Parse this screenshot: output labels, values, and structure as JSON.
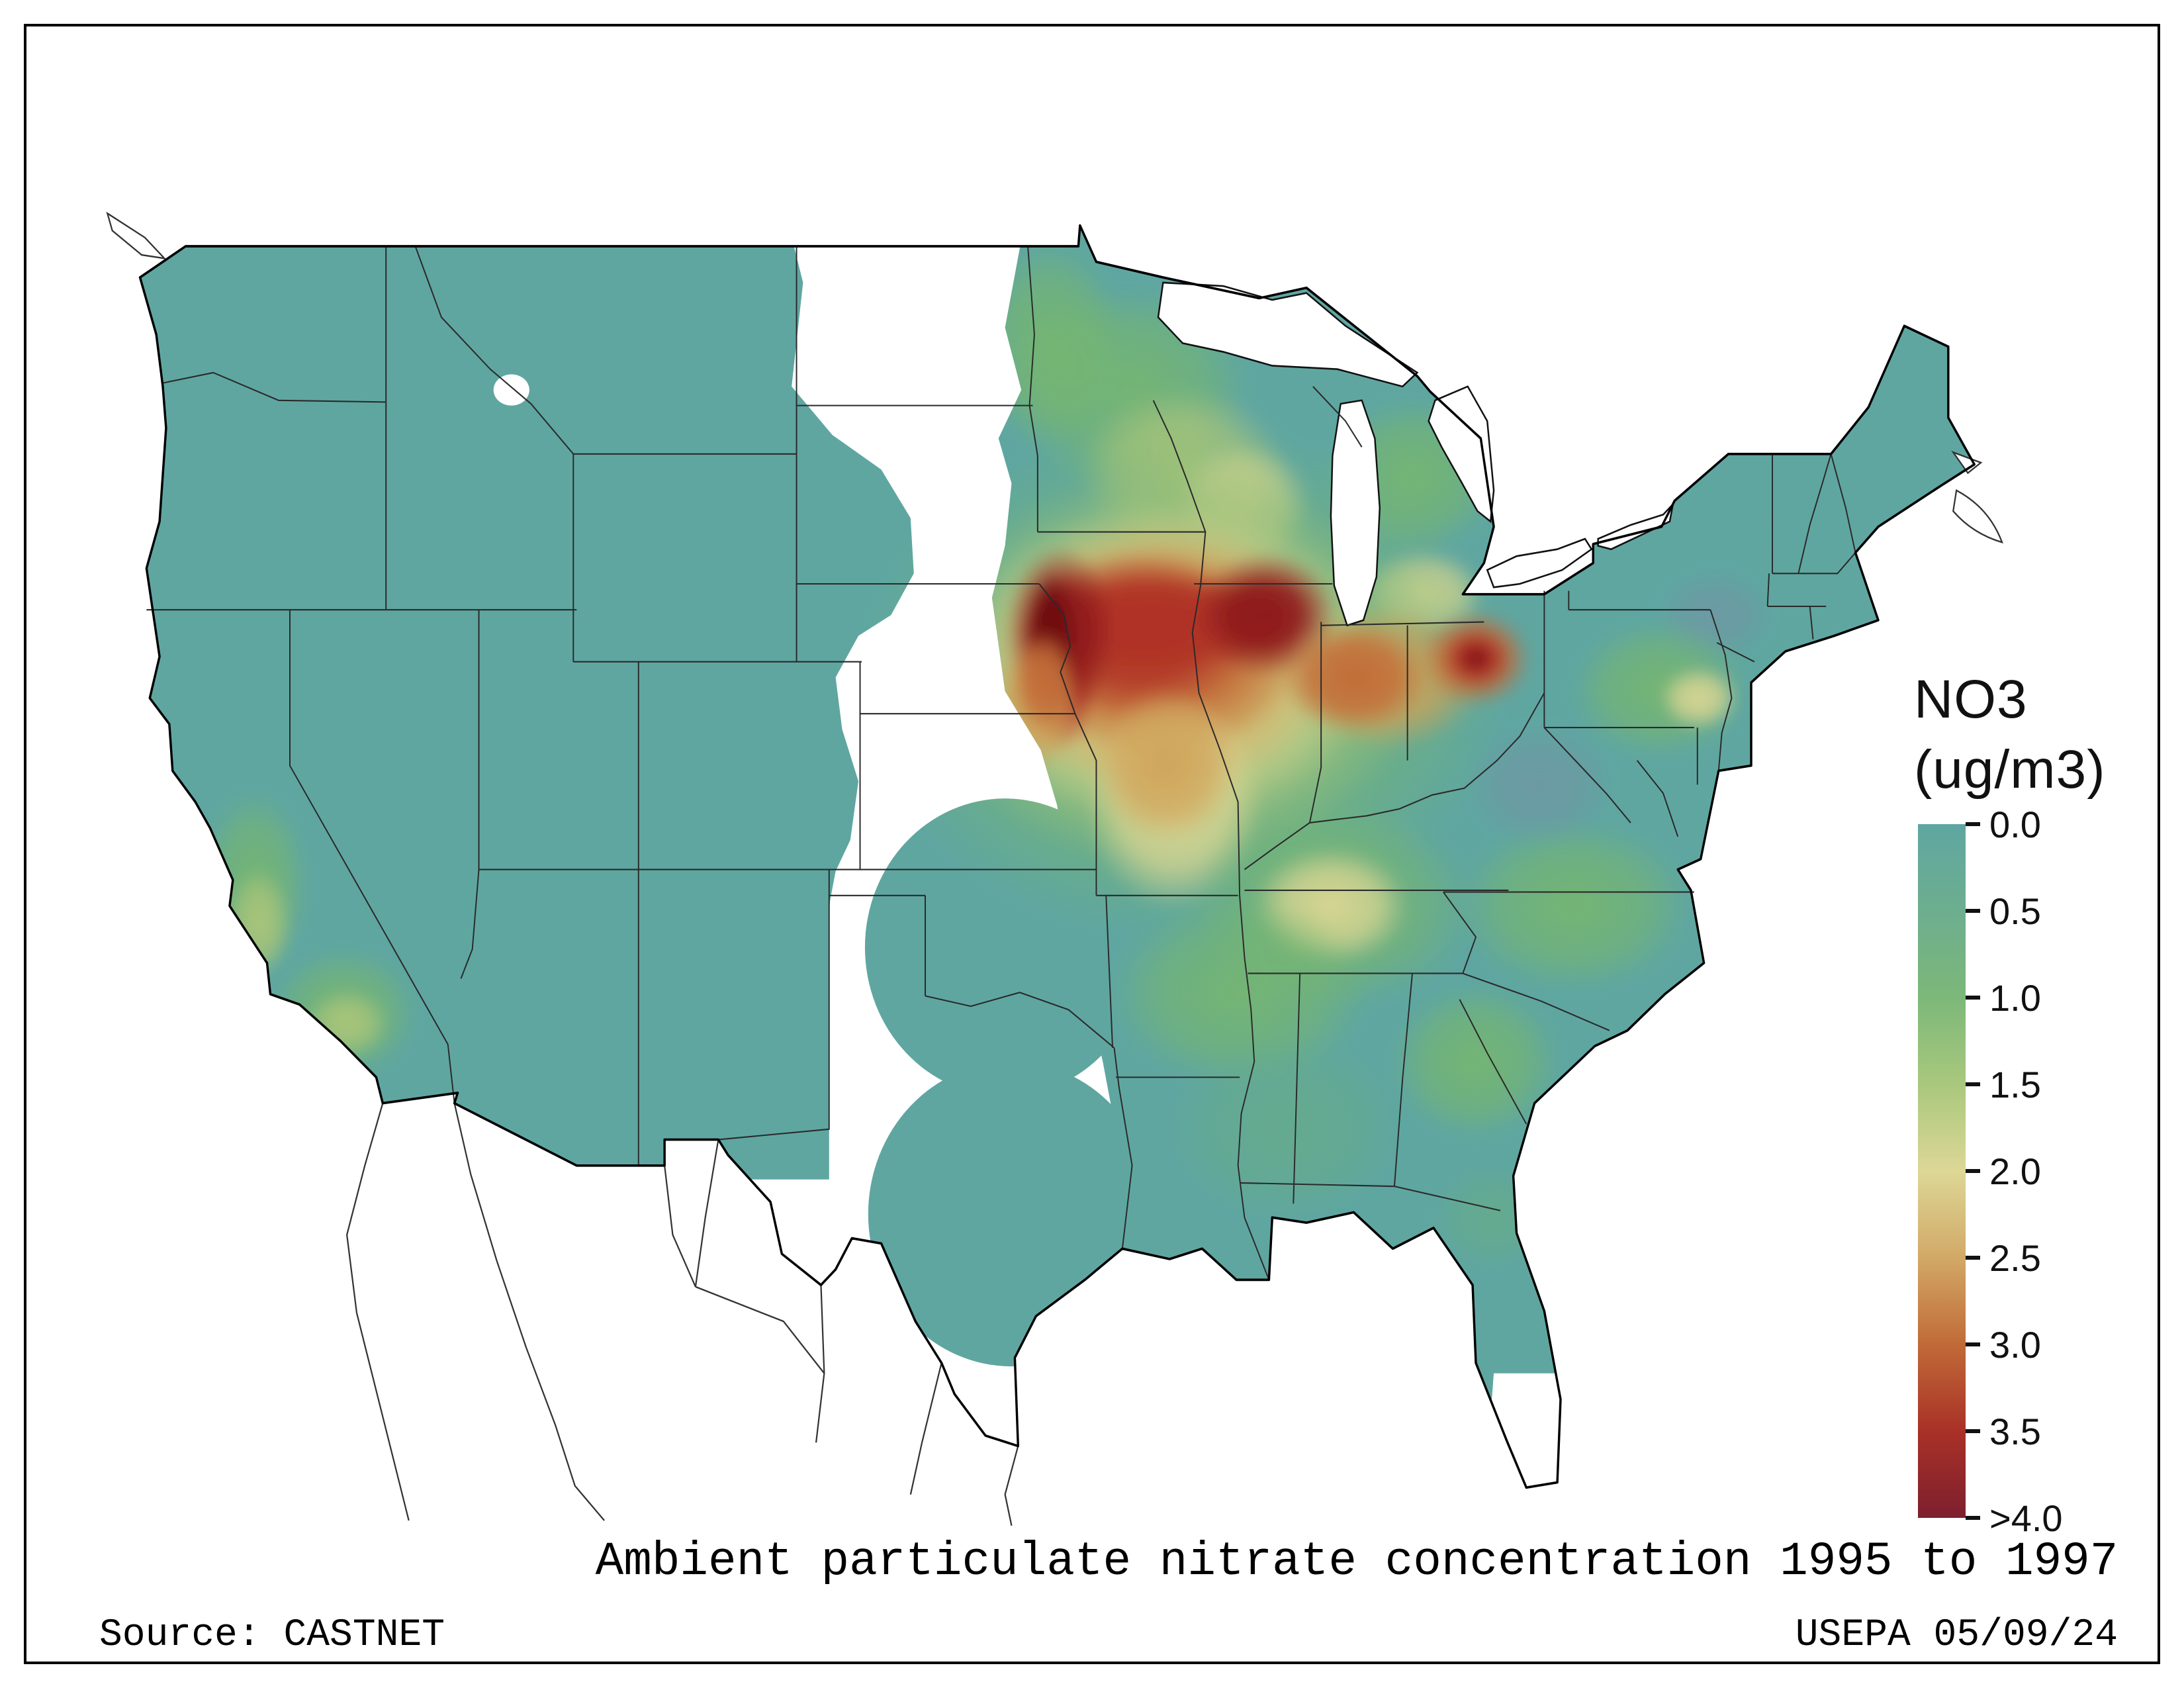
{
  "title": {
    "caption": "Ambient particulate nitrate concentration 1995 to 1997"
  },
  "footer": {
    "source": "Source: CASTNET",
    "agency_date": "USEPA 05/09/24"
  },
  "legend": {
    "title_line1": "NO3",
    "title_line2": "(ug/m3)",
    "ticks": [
      "0.0",
      "0.5",
      "1.0",
      "1.5",
      "2.0",
      "2.5",
      "3.0",
      "3.5",
      ">4.0"
    ],
    "colors": [
      "#5fa6a1",
      "#6dae8f",
      "#7cb879",
      "#a9c87d",
      "#ddd796",
      "#d2a967",
      "#c16a38",
      "#a93127",
      "#7d1f2e"
    ],
    "no_data_color": "#ffffff"
  },
  "chart_data": {
    "type": "heatmap",
    "title": "Ambient particulate nitrate concentration 1995 to 1997",
    "legend_title": "NO3 (ug/m3)",
    "scale_ticks": [
      0.0,
      0.5,
      1.0,
      1.5,
      2.0,
      2.5,
      3.0,
      3.5,
      4.0
    ],
    "scale_colors": [
      "#5fa6a1",
      "#6dae8f",
      "#7cb879",
      "#a9c87d",
      "#ddd796",
      "#d2a967",
      "#c16a38",
      "#a93127",
      "#7d1f2e"
    ],
    "units": "ug/m3",
    "geography": "Contiguous United States with state boundaries; interpolated surface from CASTNET monitoring sites; white areas = no data",
    "observations": [
      {
        "region": "Missouri River valley (western Iowa / eastern Nebraska)",
        "value_ug_m3": 4.0,
        "note": ">4.0 maximum"
      },
      {
        "region": "Northern Illinois",
        "value_ug_m3": 3.8
      },
      {
        "region": "Iowa / northern Missouri / Indiana (Midwest core)",
        "value_ug_m3": 3.0
      },
      {
        "region": "Northern Ohio hotspot",
        "value_ug_m3": 3.2
      },
      {
        "region": "Wisconsin / southern Michigan",
        "value_ug_m3": 2.0
      },
      {
        "region": "Minnesota",
        "value_ug_m3": 1.2
      },
      {
        "region": "Missouri-Arkansas band",
        "value_ug_m3": 1.8
      },
      {
        "region": "Kentucky / Tennessee patch",
        "value_ug_m3": 1.8
      },
      {
        "region": "California Central Valley and south coast",
        "value_ug_m3": 1.2
      },
      {
        "region": "Western states (WA OR ID MT WY NV UT CO AZ NM)",
        "value_ug_m3": 0.4
      },
      {
        "region": "Texas / Oklahoma coverage circles",
        "value_ug_m3": 0.5
      },
      {
        "region": "Southeast (GA AL MS FL)",
        "value_ug_m3": 0.6
      },
      {
        "region": "Mid-Atlantic (SE Pennsylvania / New Jersey spot)",
        "value_ug_m3": 1.8
      },
      {
        "region": "Virginia / North Carolina",
        "value_ug_m3": 1.0
      },
      {
        "region": "Northeast (NY, New England, Maine)",
        "value_ug_m3": 0.5
      },
      {
        "region": "Central Great Plains strip, west Texas, south Florida tip, spot in western Montana",
        "value_ug_m3": null,
        "note": "no data (white)"
      }
    ]
  }
}
